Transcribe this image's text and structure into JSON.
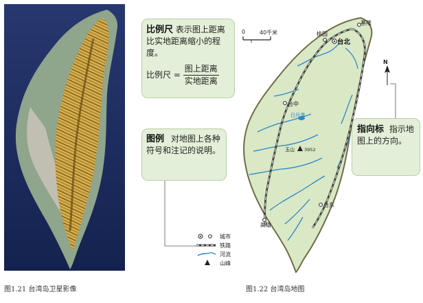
{
  "left_figure": {
    "caption": "图1.21 台湾岛卫星影像"
  },
  "right_figure": {
    "caption": "图1.22 台湾岛地图"
  },
  "scale_box": {
    "term": "比例尺",
    "description": "表示图上距离比实地距离缩小的程度。",
    "formula_label": "比例尺 =",
    "numerator": "图上距离",
    "denominator": "实地距离"
  },
  "legend_box": {
    "term": "图例",
    "description": "对地图上各种符号和注记的说明。"
  },
  "compass_box": {
    "term": "指向标",
    "description": "指示地图上的方向。"
  },
  "scale_bar": {
    "zero": "0",
    "end": "40千米"
  },
  "north_arrow": {
    "label": "N"
  },
  "map_labels": {
    "keelung": "基隆",
    "taoyuan": "桃园",
    "taipei": "台北",
    "taichung": "台中",
    "sun_moon_lake": "日月潭",
    "yushan": "玉山",
    "yushan_elevation": "3952",
    "taitung": "台东",
    "kaohsiung": "高雄"
  },
  "legend": {
    "items": [
      {
        "symbol": "city-symbol",
        "label": "城市"
      },
      {
        "symbol": "railway-symbol",
        "label": "铁路"
      },
      {
        "symbol": "river-symbol",
        "label": "河流"
      },
      {
        "symbol": "peak-symbol",
        "label": "山峰"
      }
    ]
  },
  "colors": {
    "land": "#d9e8c5",
    "coast": "#6f6a45",
    "river": "#2f86c8",
    "callout_bg": "#e3efd8",
    "satellite_sea": "#1d2f66",
    "satellite_mountain": "#b9902e"
  }
}
